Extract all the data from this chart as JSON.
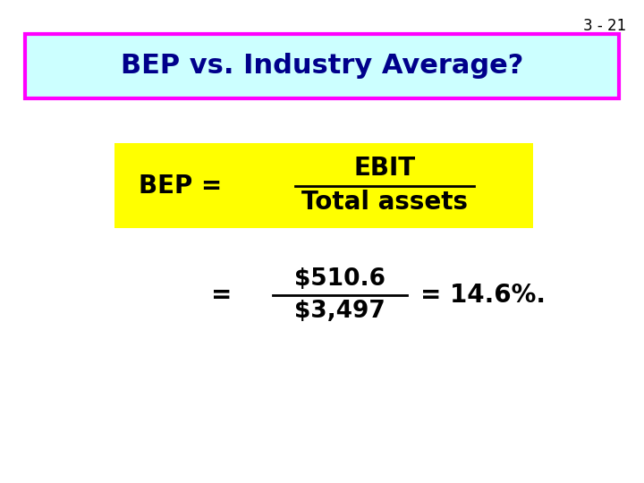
{
  "slide_number": "3 - 21",
  "title": "BEP vs. Industry Average?",
  "title_bg_color": "#ccffff",
  "title_border_color": "#ff00ff",
  "title_text_color": "#00008B",
  "formula_bg_color": "#ffff00",
  "formula_left": "BEP =",
  "formula_numerator": "EBIT",
  "formula_denominator": "Total assets",
  "calc_equal": "=",
  "calc_numerator": "$510.6",
  "calc_denominator": "$3,497",
  "calc_result": "= 14.6%.",
  "text_color": "#000000",
  "bg_color": "#ffffff",
  "slide_number_color": "#000000"
}
